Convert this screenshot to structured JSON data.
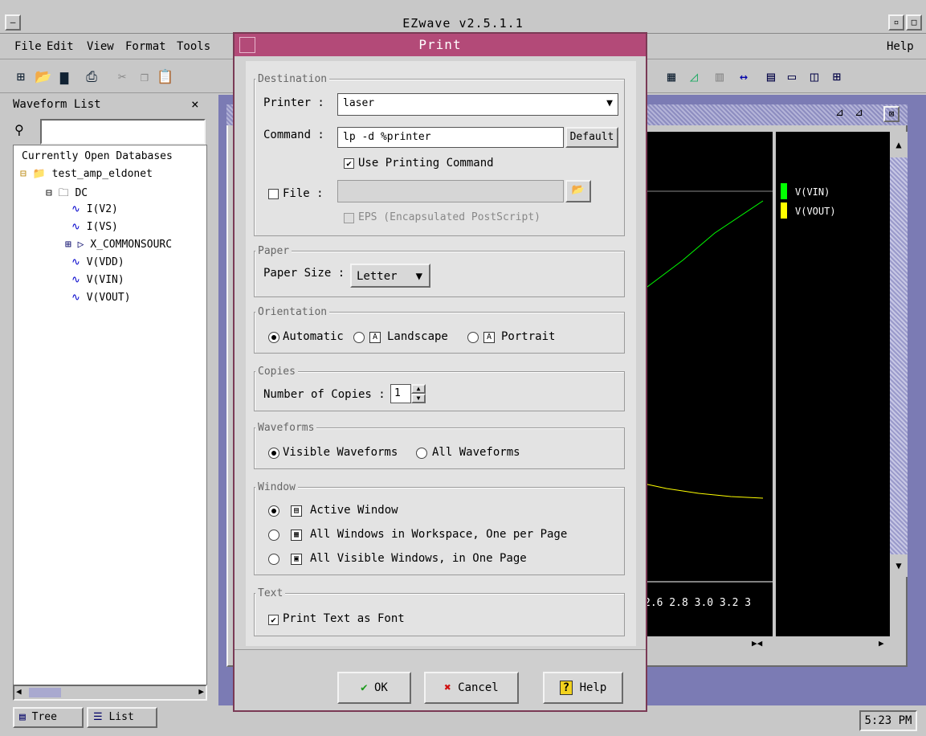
{
  "app": {
    "title": "EZwave  v2.5.1.1",
    "menu": [
      "File",
      "Edit",
      "View",
      "Format",
      "Tools"
    ],
    "menu_right": "Help",
    "status_time": "5:23 PM"
  },
  "left": {
    "title": "Waveform List",
    "search_placeholder": "",
    "tree": {
      "root": "Currently Open Databases",
      "db": "test_amp_eldonet",
      "folder": "DC",
      "items": [
        "I(V2)",
        "I(VS)",
        "X_COMMONSOURC",
        "V(VDD)",
        "V(VIN)",
        "V(VOUT)"
      ]
    },
    "tabs": {
      "tree": "Tree",
      "list": "List"
    }
  },
  "plot": {
    "legend": [
      {
        "label": "V(VIN)",
        "color": "#00ff00"
      },
      {
        "label": "V(VOUT)",
        "color": "#ffff00"
      }
    ],
    "x_ticks": "2.6 2.8 3.0 3.2 3"
  },
  "dialog": {
    "title": "Print",
    "destination": {
      "label": "Destination",
      "printer_label": "Printer :",
      "printer_value": "laser",
      "command_label": "Command :",
      "command_value": "lp -d %printer",
      "default_button": "Default",
      "use_printing_command": "Use Printing Command",
      "use_printing_command_checked": true,
      "file_label": "File :",
      "file_value": "",
      "eps_label": "EPS (Encapsulated PostScript)"
    },
    "paper": {
      "label": "Paper",
      "size_label": "Paper Size :",
      "size_value": "Letter"
    },
    "orientation": {
      "label": "Orientation",
      "options": [
        "Automatic",
        "Landscape",
        "Portrait"
      ],
      "selected": "Automatic"
    },
    "copies": {
      "label": "Copies",
      "count_label": "Number of Copies :",
      "count_value": "1"
    },
    "waveforms": {
      "label": "Waveforms",
      "options": [
        "Visible Waveforms",
        "All Waveforms"
      ],
      "selected": "Visible Waveforms"
    },
    "window": {
      "label": "Window",
      "options": [
        "Active Window",
        "All Windows in Workspace, One per Page",
        "All Visible Windows, in One Page"
      ],
      "selected": "Active Window"
    },
    "text": {
      "label": "Text",
      "print_text_as_font": "Print Text as Font",
      "checked": true
    },
    "buttons": {
      "ok": "OK",
      "cancel": "Cancel",
      "help": "Help"
    }
  }
}
